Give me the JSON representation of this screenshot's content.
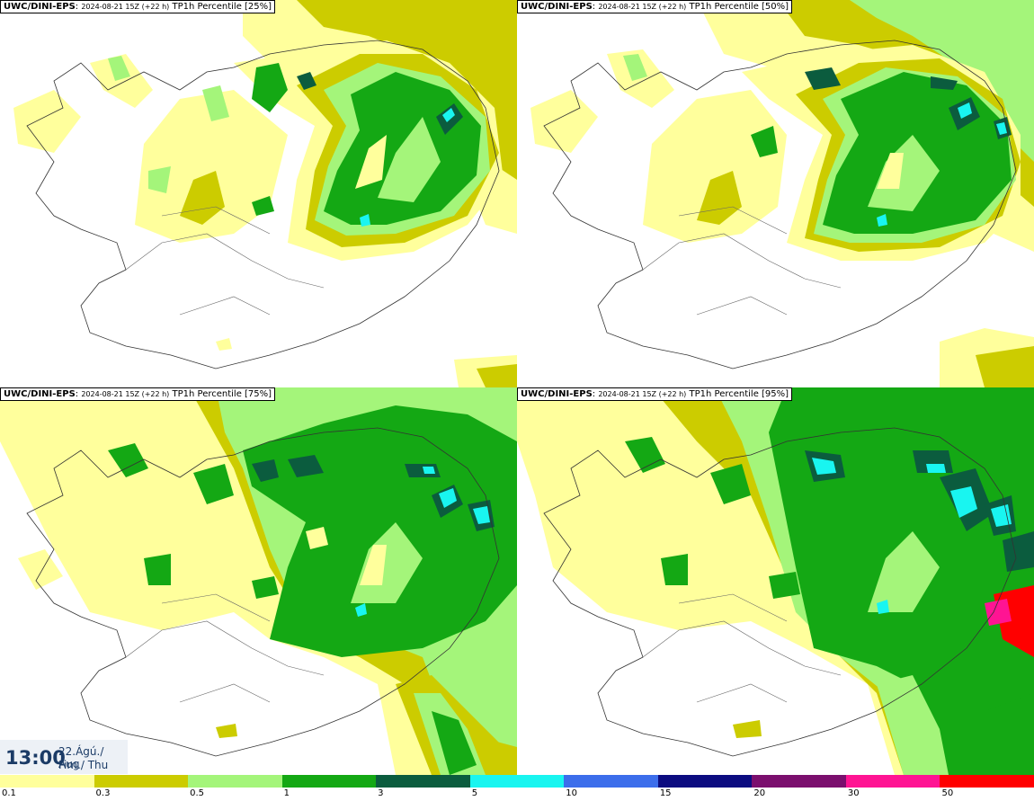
{
  "panels": [
    {
      "model": "UWC/DINI-EPS",
      "run": "2024-08-21 15Z (+22 h)",
      "field": "TP1h Percentile [25%]",
      "level": 0.25
    },
    {
      "model": "UWC/DINI-EPS",
      "run": "2024-08-21 15Z (+22 h)",
      "field": "TP1h Percentile [50%]",
      "level": 0.5
    },
    {
      "model": "UWC/DINI-EPS",
      "run": "2024-08-21 15Z (+22 h)",
      "field": "TP1h Percentile [75%]",
      "level": 0.75
    },
    {
      "model": "UWC/DINI-EPS",
      "run": "2024-08-21 15Z (+22 h)",
      "field": "TP1h Percentile [95%]",
      "level": 0.95
    }
  ],
  "time": {
    "clock": "13:00",
    "date_line": "22.Ágú./ Aug",
    "day_line": "Fim./ Thu"
  },
  "legend": {
    "labels": [
      "0.1",
      "0.3",
      "0.5",
      "1",
      "3",
      "5",
      "10",
      "15",
      "20",
      "30",
      "50"
    ],
    "colors": [
      "#ffff9c",
      "#cccc00",
      "#a4f57a",
      "#14a814",
      "#0b5c3e",
      "#19f5f0",
      "#3c6eeb",
      "#0c0c80",
      "#7b0f6e",
      "#ff1493",
      "#ff0000"
    ]
  }
}
